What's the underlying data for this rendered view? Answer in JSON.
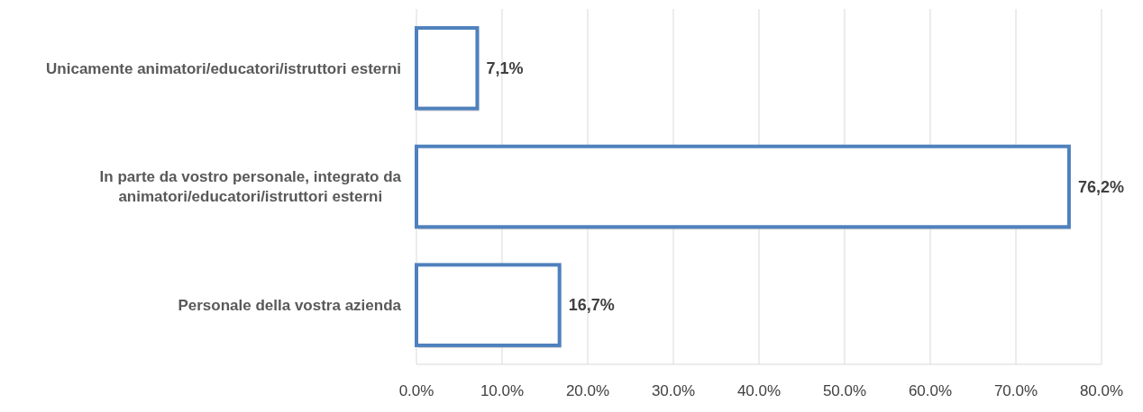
{
  "chart_data": {
    "type": "bar",
    "orientation": "horizontal",
    "categories": [
      "Unicamente animatori/educatori/istruttori esterni",
      "In parte da vostro personale, integrato da animatori/educatori/istruttori esterni",
      "Personale della vostra azienda"
    ],
    "values": [
      7.1,
      76.2,
      16.7
    ],
    "value_labels": [
      "7,1%",
      "76,2%",
      "16,7%"
    ],
    "color": "#4f81bd",
    "xlim": [
      0,
      80
    ],
    "xticks": [
      {
        "value": 0,
        "label": "0.0%"
      },
      {
        "value": 10,
        "label": "10.0%"
      },
      {
        "value": 20,
        "label": "20.0%"
      },
      {
        "value": 30,
        "label": "30.0%"
      },
      {
        "value": 40,
        "label": "40.0%"
      },
      {
        "value": 50,
        "label": "50.0%"
      },
      {
        "value": 60,
        "label": "60.0%"
      },
      {
        "value": 70,
        "label": "70.0%"
      },
      {
        "value": 80,
        "label": "80.0%"
      }
    ],
    "grid": "x"
  }
}
